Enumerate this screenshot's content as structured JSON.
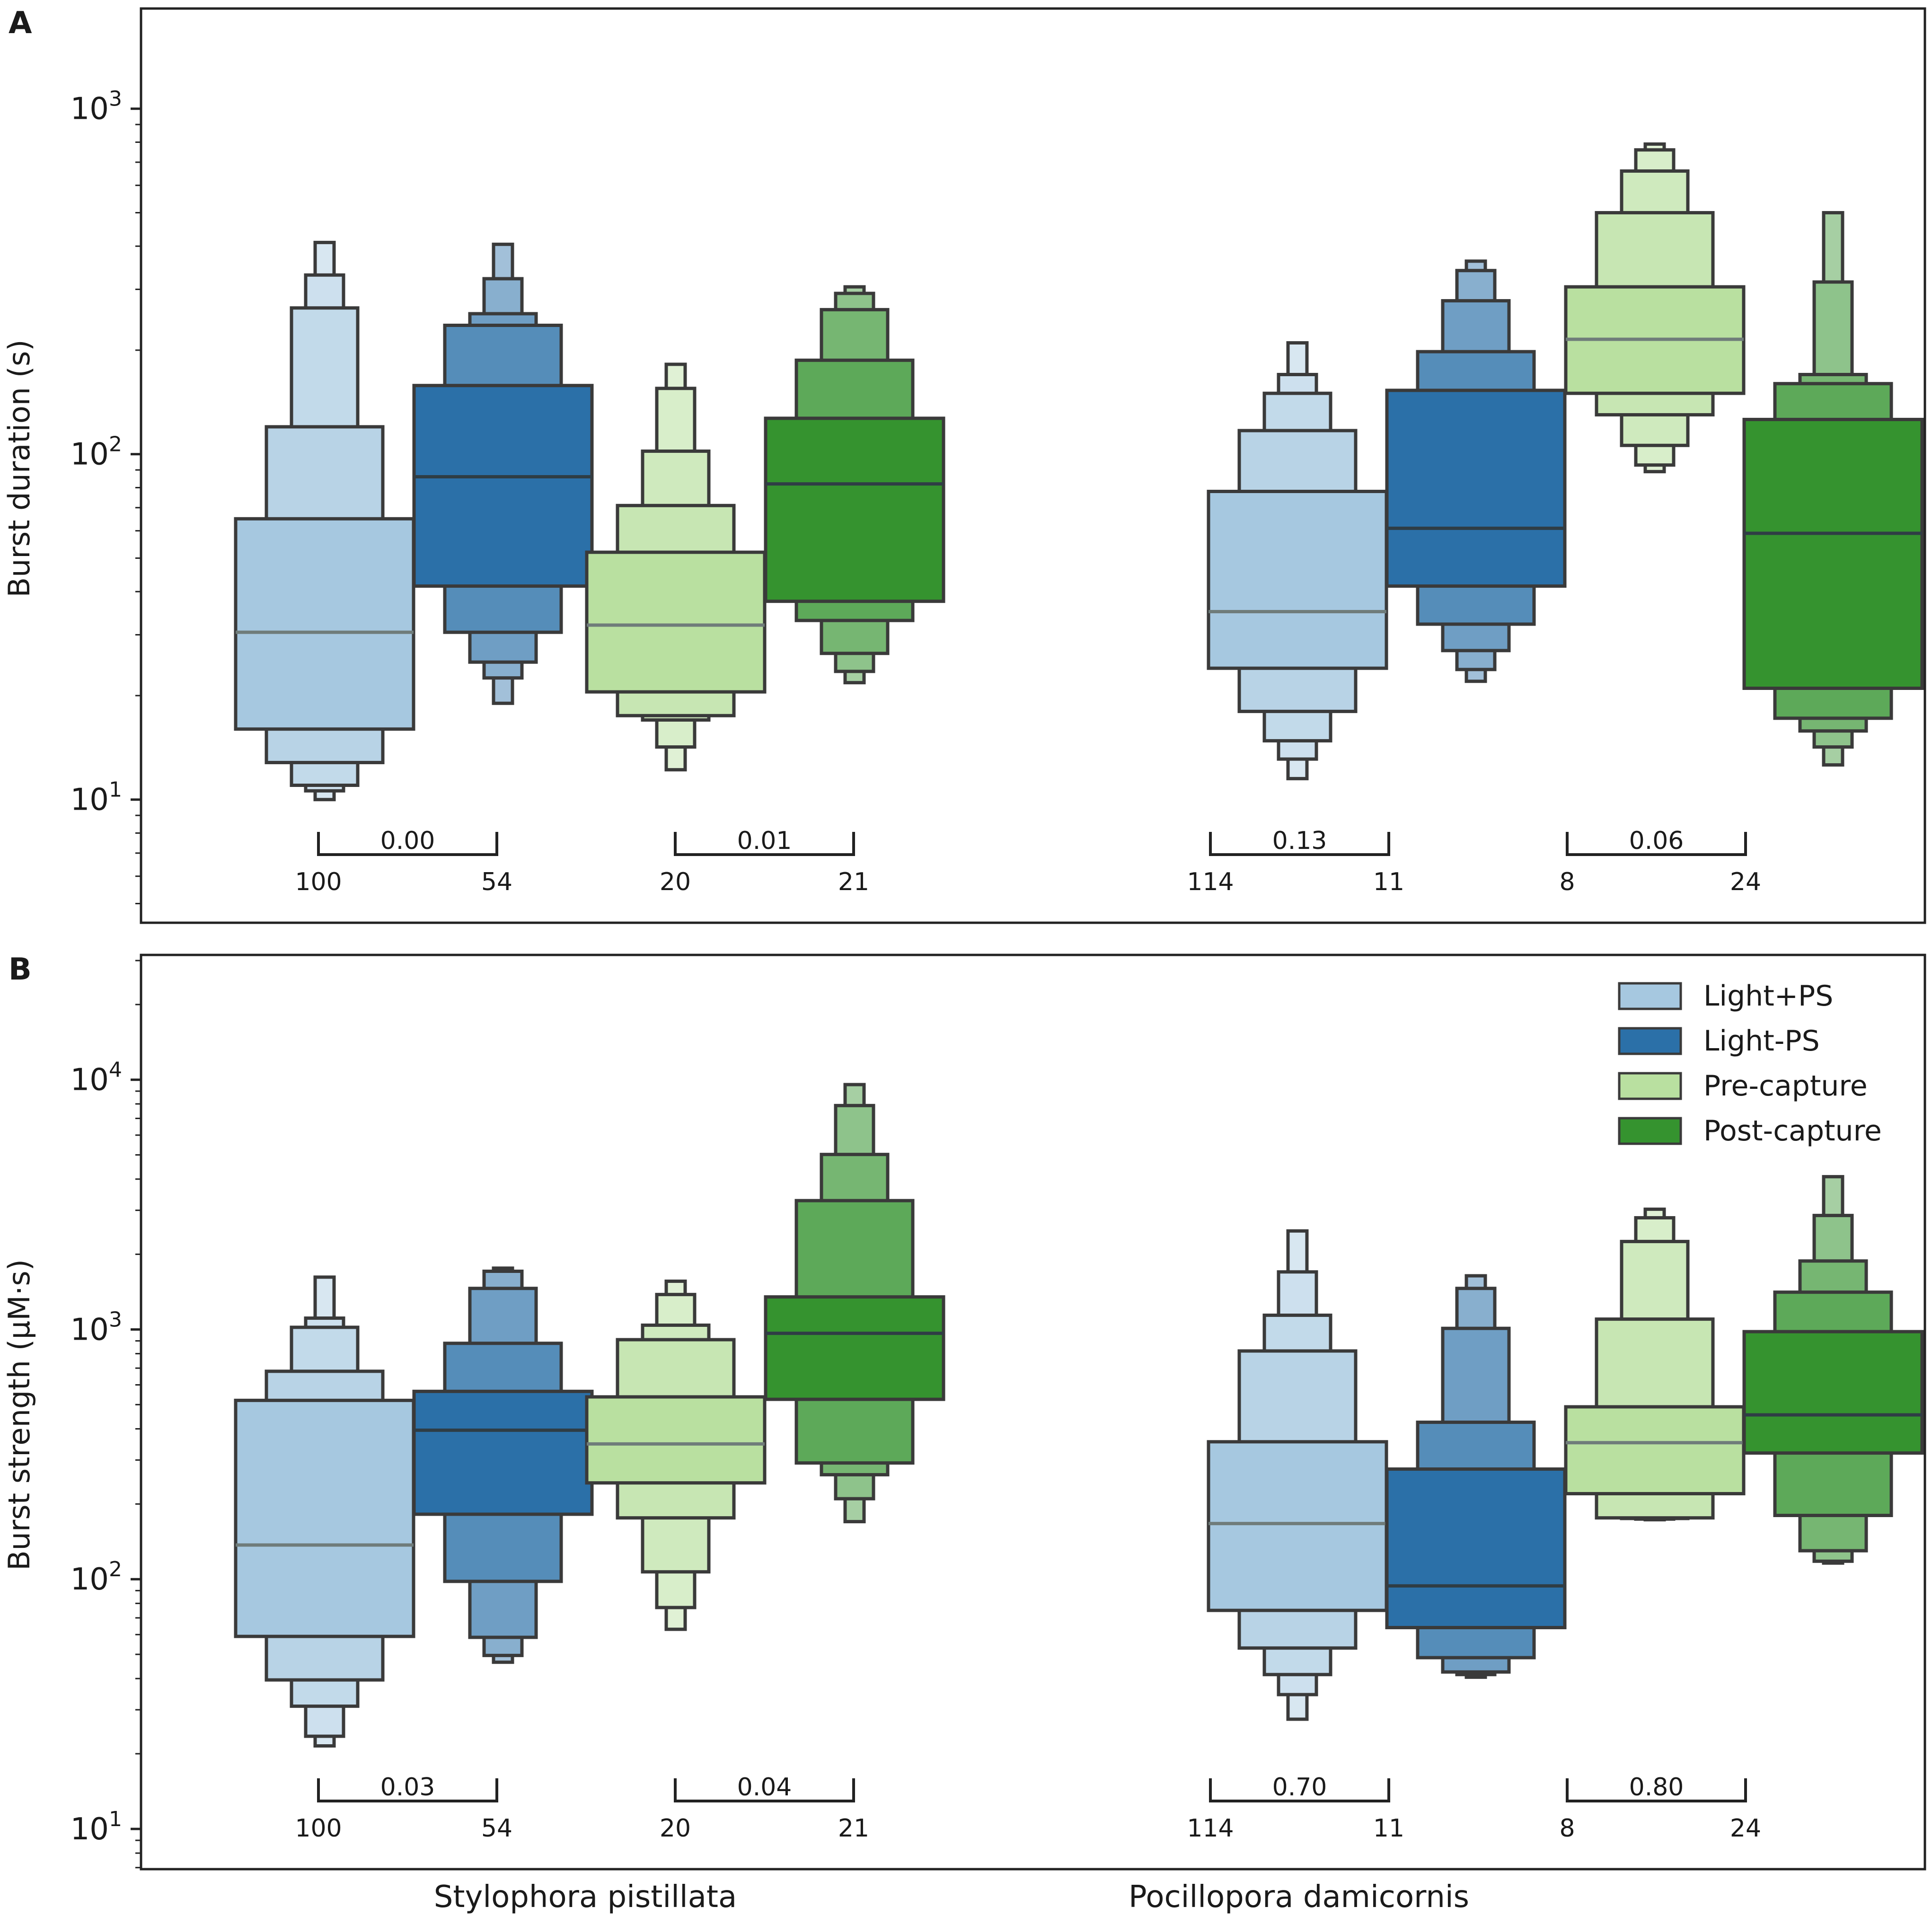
{
  "figure": {
    "categories": [
      "Stylophora pistillata",
      "Pocillopora damicornis"
    ],
    "legend": [
      {
        "label": "Light+PS",
        "color": "#a6c8e0"
      },
      {
        "label": "Light-PS",
        "color": "#2b70a8"
      },
      {
        "label": "Pre-capture",
        "color": "#b9e0a0"
      },
      {
        "label": "Post-capture",
        "color": "#35932f"
      }
    ],
    "edge_color": "#3a3a3a"
  },
  "chart_data": [
    {
      "type": "boxen",
      "panel": "A",
      "title": "",
      "ylabel": "Burst duration (s)",
      "yscale": "log",
      "ylim": [
        4.4,
        1950
      ],
      "yticks": [
        {
          "base": "10",
          "exp": "1",
          "value": 10
        },
        {
          "base": "10",
          "exp": "2",
          "value": 100
        },
        {
          "base": "10",
          "exp": "3",
          "value": 1000
        }
      ],
      "categories": [
        "Stylophora pistillata",
        "Pocillopora damicornis"
      ],
      "series": [
        {
          "name": "Light+PS",
          "category": "Stylophora pistillata",
          "median": 30.5,
          "boxes": [
            [
              16,
              65
            ],
            [
              12.8,
              120
            ],
            [
              11,
              265
            ],
            [
              10.6,
              330
            ],
            [
              10,
              410
            ]
          ]
        },
        {
          "name": "Light-PS",
          "category": "Stylophora pistillata",
          "median": 86,
          "boxes": [
            [
              41.5,
              158
            ],
            [
              30.5,
              236
            ],
            [
              25,
              255
            ],
            [
              22.5,
              322
            ],
            [
              19,
              405
            ]
          ]
        },
        {
          "name": "Pre-capture",
          "category": "Stylophora pistillata",
          "median": 32,
          "boxes": [
            [
              20.5,
              52
            ],
            [
              17.5,
              71
            ],
            [
              17,
              102
            ],
            [
              14.2,
              155
            ],
            [
              12.2,
              182
            ]
          ]
        },
        {
          "name": "Post-capture",
          "category": "Stylophora pistillata",
          "median": 82,
          "boxes": [
            [
              37.5,
              127
            ],
            [
              33,
              187
            ],
            [
              26.5,
              262
            ],
            [
              23.5,
              292
            ],
            [
              21.8,
              305
            ]
          ]
        },
        {
          "name": "Light+PS",
          "category": "Pocillopora damicornis",
          "median": 35,
          "boxes": [
            [
              24,
              78
            ],
            [
              18,
              117
            ],
            [
              14.8,
              150
            ],
            [
              13.1,
              170
            ],
            [
              11.5,
              210
            ]
          ]
        },
        {
          "name": "Light-PS",
          "category": "Pocillopora damicornis",
          "median": 61,
          "boxes": [
            [
              41.5,
              153
            ],
            [
              32.2,
              198
            ],
            [
              27,
              278
            ],
            [
              23.8,
              340
            ],
            [
              22,
              362
            ]
          ]
        },
        {
          "name": "Pre-capture",
          "category": "Pocillopora damicornis",
          "median": 215,
          "boxes": [
            [
              150,
              305
            ],
            [
              130,
              500
            ],
            [
              106,
              660
            ],
            [
              93,
              760
            ],
            [
              89,
              790
            ]
          ]
        },
        {
          "name": "Post-capture",
          "category": "Pocillopora damicornis",
          "median": 59,
          "boxes": [
            [
              21,
              126
            ],
            [
              17.2,
              160
            ],
            [
              15.8,
              170
            ],
            [
              14.2,
              315
            ],
            [
              12.6,
              500
            ]
          ]
        }
      ],
      "annotations": [
        {
          "pvalue": "0.00",
          "n_left": "100",
          "n_right": "54"
        },
        {
          "pvalue": "0.01",
          "n_left": "20",
          "n_right": "21"
        },
        {
          "pvalue": "0.13",
          "n_left": "114",
          "n_right": "11"
        },
        {
          "pvalue": "0.06",
          "n_left": "8",
          "n_right": "24"
        }
      ]
    },
    {
      "type": "boxen",
      "panel": "B",
      "title": "",
      "ylabel": "Burst strength (μM·s)",
      "yscale": "log",
      "ylim": [
        6.9,
        31600
      ],
      "yticks": [
        {
          "base": "10",
          "exp": "1",
          "value": 10
        },
        {
          "base": "10",
          "exp": "2",
          "value": 100
        },
        {
          "base": "10",
          "exp": "3",
          "value": 1000
        },
        {
          "base": "10",
          "exp": "4",
          "value": 10000
        }
      ],
      "categories": [
        "Stylophora pistillata",
        "Pocillopora damicornis"
      ],
      "series": [
        {
          "name": "Light+PS",
          "category": "Stylophora pistillata",
          "median": 137,
          "boxes": [
            [
              59,
              520
            ],
            [
              39.5,
              680
            ],
            [
              31,
              1020
            ],
            [
              23.5,
              1110
            ],
            [
              21.5,
              1620
            ]
          ]
        },
        {
          "name": "Light-PS",
          "category": "Stylophora pistillata",
          "median": 395,
          "boxes": [
            [
              182,
              565
            ],
            [
              98,
              880
            ],
            [
              58.5,
              1460
            ],
            [
              49.5,
              1710
            ],
            [
              46.5,
              1760
            ]
          ]
        },
        {
          "name": "Pre-capture",
          "category": "Stylophora pistillata",
          "median": 348,
          "boxes": [
            [
              243,
              537
            ],
            [
              176,
              910
            ],
            [
              107,
              1040
            ],
            [
              77,
              1380
            ],
            [
              63,
              1560
            ]
          ]
        },
        {
          "name": "Post-capture",
          "category": "Stylophora pistillata",
          "median": 965,
          "boxes": [
            [
              525,
              1350
            ],
            [
              292,
              3280
            ],
            [
              262,
              5020
            ],
            [
              210,
              7880
            ],
            [
              170,
              9560
            ]
          ]
        },
        {
          "name": "Light+PS",
          "category": "Pocillopora damicornis",
          "median": 167,
          "boxes": [
            [
              75,
              355
            ],
            [
              53,
              820
            ],
            [
              41.5,
              1140
            ],
            [
              34.5,
              1700
            ],
            [
              27.5,
              2480
            ]
          ]
        },
        {
          "name": "Light-PS",
          "category": "Pocillopora damicornis",
          "median": 94,
          "boxes": [
            [
              64,
              276
            ],
            [
              48.5,
              425
            ],
            [
              42.5,
              1010
            ],
            [
              41.5,
              1460
            ],
            [
              40.5,
              1640
            ]
          ]
        },
        {
          "name": "Pre-capture",
          "category": "Pocillopora damicornis",
          "median": 352,
          "boxes": [
            [
              220,
              490
            ],
            [
              176,
              1100
            ],
            [
              175,
              2250
            ],
            [
              174,
              2800
            ],
            [
              173,
              3030
            ]
          ]
        },
        {
          "name": "Post-capture",
          "category": "Pocillopora damicornis",
          "median": 455,
          "boxes": [
            [
              320,
              980
            ],
            [
              180,
              1410
            ],
            [
              130,
              1880
            ],
            [
              118,
              2860
            ],
            [
              116,
              4090
            ]
          ]
        }
      ],
      "annotations": [
        {
          "pvalue": "0.03",
          "n_left": "100",
          "n_right": "54"
        },
        {
          "pvalue": "0.04",
          "n_left": "20",
          "n_right": "21"
        },
        {
          "pvalue": "0.70",
          "n_left": "114",
          "n_right": "11"
        },
        {
          "pvalue": "0.80",
          "n_left": "8",
          "n_right": "24"
        }
      ]
    }
  ]
}
